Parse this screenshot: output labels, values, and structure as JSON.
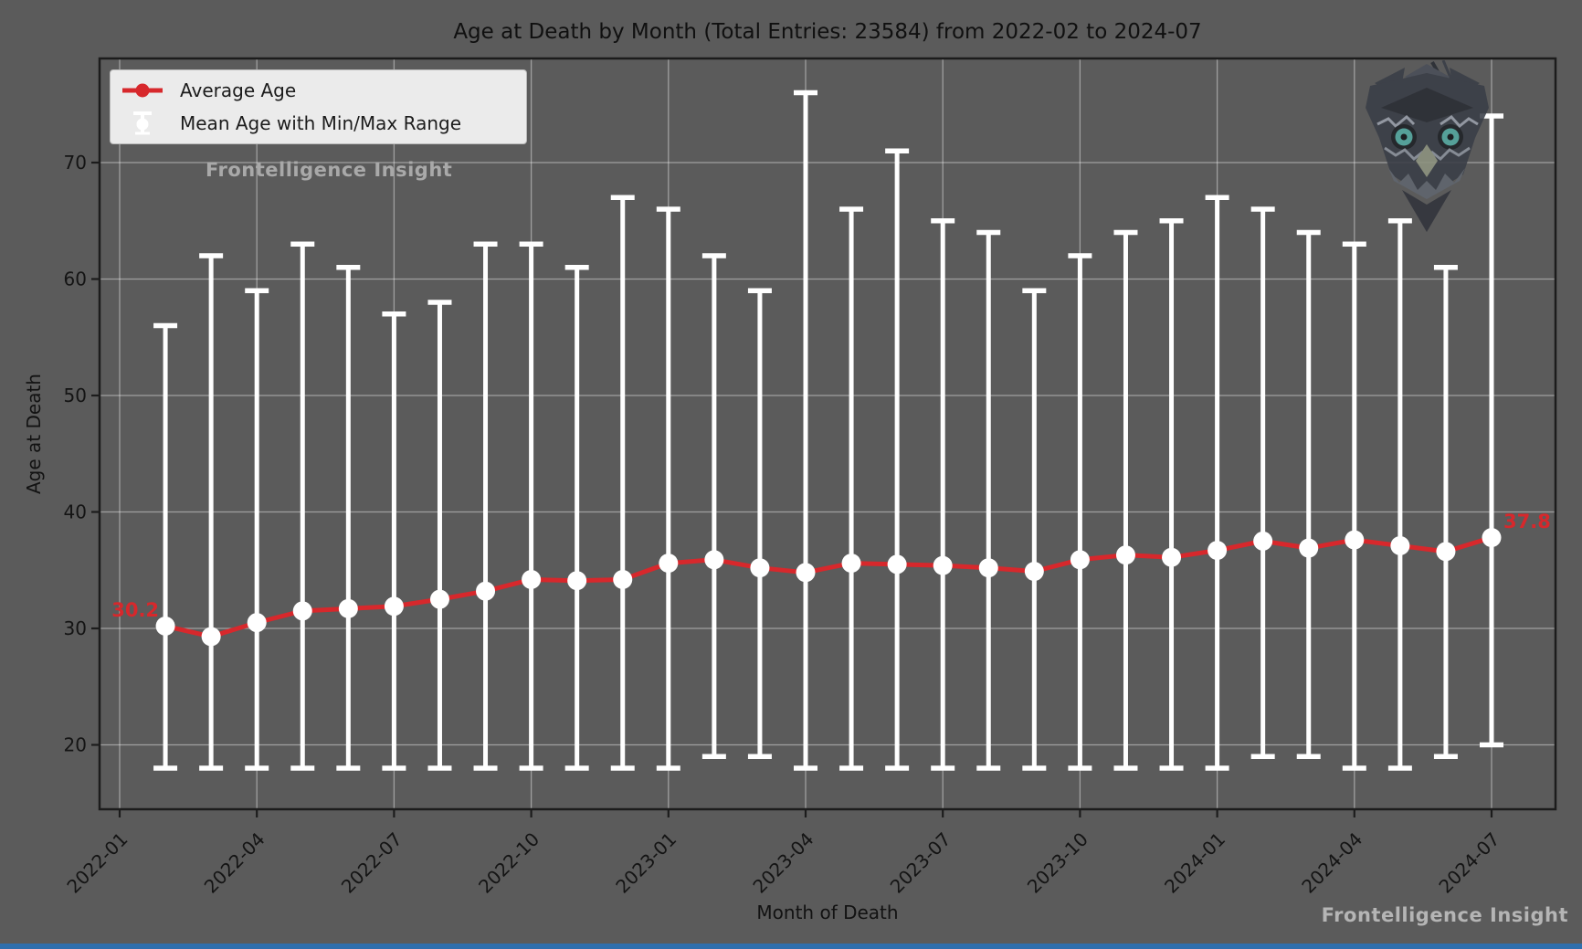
{
  "figure": {
    "title": "Age at Death by Month (Total Entries: 23584) from 2022-02 to 2024-07"
  },
  "legend": {
    "items": [
      {
        "label": "Average Age",
        "marker": "red-line-dot-icon"
      },
      {
        "label": "Mean Age with Min/Max Range",
        "marker": "white-errorbar-icon"
      }
    ]
  },
  "watermarks": {
    "top_left": "Frontelligence Insight",
    "bottom_right": "Frontelligence Insight"
  },
  "annotations": {
    "first_point": "30.2",
    "last_point": "37.8"
  },
  "colors": {
    "background": "#5b5b5b",
    "mean_line": "#d7282c",
    "errorbar": "#ffffff",
    "marker_fill": "#ffffff",
    "grid": "rgba(255,255,255,0.42)",
    "spine": "#1c1c1c",
    "tick_label": "#141414",
    "annotation": "#d7282c",
    "legend_background": "#ebebeb",
    "watermark": "#a9a9a9",
    "bottom_strip": "#2f6fad",
    "owl_eye": "#55aaa2"
  },
  "chart_data": {
    "type": "line-errorbar",
    "title": "Age at Death by Month (Total Entries: 23584) from 2022-02 to 2024-07",
    "xlabel": "Month of Death",
    "ylabel": "Age at Death",
    "total_entries": 23584,
    "x": [
      "2022-02",
      "2022-03",
      "2022-04",
      "2022-05",
      "2022-06",
      "2022-07",
      "2022-08",
      "2022-09",
      "2022-10",
      "2022-11",
      "2022-12",
      "2023-01",
      "2023-02",
      "2023-03",
      "2023-04",
      "2023-05",
      "2023-06",
      "2023-07",
      "2023-08",
      "2023-09",
      "2023-10",
      "2023-11",
      "2023-12",
      "2024-01",
      "2024-02",
      "2024-03",
      "2024-04",
      "2024-05",
      "2024-06",
      "2024-07"
    ],
    "mean": [
      30.2,
      29.3,
      30.5,
      31.5,
      31.7,
      31.9,
      32.5,
      33.2,
      34.2,
      34.1,
      34.2,
      35.6,
      35.9,
      35.2,
      34.8,
      35.6,
      35.5,
      35.4,
      35.2,
      34.9,
      35.9,
      36.3,
      36.1,
      36.7,
      37.5,
      36.9,
      37.6,
      37.1,
      36.6,
      37.8
    ],
    "min": [
      18,
      18,
      18,
      18,
      18,
      18,
      18,
      18,
      18,
      18,
      18,
      18,
      19,
      19,
      18,
      18,
      18,
      18,
      18,
      18,
      18,
      18,
      18,
      18,
      19,
      19,
      18,
      18,
      19,
      20
    ],
    "max": [
      56,
      62,
      59,
      63,
      61,
      57,
      58,
      63,
      63,
      61,
      67,
      66,
      62,
      59,
      76,
      66,
      71,
      65,
      64,
      59,
      62,
      64,
      65,
      67,
      66,
      64,
      63,
      65,
      61,
      74
    ],
    "xticks": [
      "2022-01",
      "2022-04",
      "2022-07",
      "2022-10",
      "2023-01",
      "2023-04",
      "2023-07",
      "2023-10",
      "2024-01",
      "2024-04",
      "2024-07"
    ],
    "yticks": [
      20,
      30,
      40,
      50,
      60,
      70
    ],
    "ylim": [
      14.5,
      79.0
    ],
    "grid": true,
    "legend_position": "upper-left",
    "series": [
      {
        "name": "Average Age",
        "style": "red line with circle markers"
      },
      {
        "name": "Mean Age with Min/Max Range",
        "style": "white errorbar with caps and white mean markers"
      }
    ]
  }
}
